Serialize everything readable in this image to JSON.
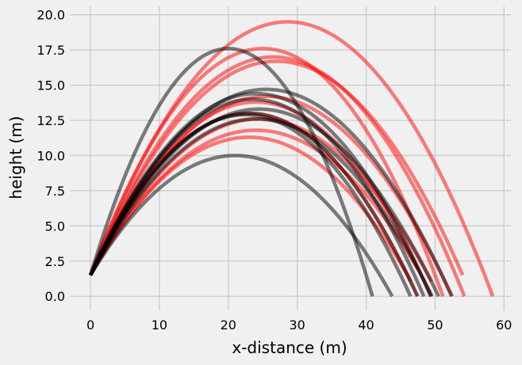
{
  "chart_data": {
    "type": "line",
    "title": "",
    "xlabel": "x-distance (m)",
    "ylabel": "height (m)",
    "xlim": [
      -3.0,
      61.0
    ],
    "ylim": [
      -1.0,
      20.6
    ],
    "x_ticks": [
      0,
      10,
      20,
      30,
      40,
      50,
      60
    ],
    "y_ticks": [
      0.0,
      2.5,
      5.0,
      7.5,
      10.0,
      12.5,
      15.0,
      17.5,
      20.0
    ],
    "x_tick_labels": [
      "0",
      "10",
      "20",
      "30",
      "40",
      "50",
      "60"
    ],
    "y_tick_labels": [
      "0.0",
      "2.5",
      "5.0",
      "7.5",
      "10.0",
      "12.5",
      "15.0",
      "17.5",
      "20.0"
    ],
    "grid": true,
    "launch_height": 1.5,
    "colors": {
      "red": "#ff0000",
      "black": "#000000",
      "background": "#f0f0f0",
      "grid": "#cbcbcb"
    },
    "series": [
      {
        "color": "red",
        "apex_x": 28.6,
        "apex_y": 19.5,
        "landing_x": 58.0
      },
      {
        "color": "red",
        "apex_x": 25.0,
        "apex_y": 17.6,
        "landing_x": 52.0
      },
      {
        "color": "red",
        "apex_x": 26.5,
        "apex_y": 17.0,
        "landing_x": 54.3
      },
      {
        "color": "red",
        "apex_x": 27.0,
        "apex_y": 16.7,
        "landing_x": 53.5
      },
      {
        "color": "red",
        "apex_x": 25.5,
        "apex_y": 14.2,
        "landing_x": 53.0
      },
      {
        "color": "red",
        "apex_x": 24.0,
        "apex_y": 13.8,
        "landing_x": 50.5
      },
      {
        "color": "red",
        "apex_x": 23.0,
        "apex_y": 13.0,
        "landing_x": 48.0
      },
      {
        "color": "red",
        "apex_x": 24.5,
        "apex_y": 12.6,
        "landing_x": 49.0
      },
      {
        "color": "red",
        "apex_x": 24.0,
        "apex_y": 11.8,
        "landing_x": 47.0
      },
      {
        "color": "red",
        "apex_x": 23.0,
        "apex_y": 11.3,
        "landing_x": 46.0
      },
      {
        "color": "black",
        "apex_x": 20.0,
        "apex_y": 17.6,
        "landing_x": 41.5
      },
      {
        "color": "black",
        "apex_x": 25.5,
        "apex_y": 14.7,
        "landing_x": 52.0
      },
      {
        "color": "black",
        "apex_x": 24.0,
        "apex_y": 14.4,
        "landing_x": 50.5
      },
      {
        "color": "black",
        "apex_x": 23.5,
        "apex_y": 14.0,
        "landing_x": 49.0
      },
      {
        "color": "black",
        "apex_x": 24.5,
        "apex_y": 13.3,
        "landing_x": 51.0
      },
      {
        "color": "black",
        "apex_x": 23.0,
        "apex_y": 13.0,
        "landing_x": 48.5
      },
      {
        "color": "black",
        "apex_x": 24.0,
        "apex_y": 12.6,
        "landing_x": 50.0
      },
      {
        "color": "black",
        "apex_x": 22.5,
        "apex_y": 12.9,
        "landing_x": 47.0
      },
      {
        "color": "black",
        "apex_x": 21.0,
        "apex_y": 10.0,
        "landing_x": 44.5
      }
    ]
  }
}
